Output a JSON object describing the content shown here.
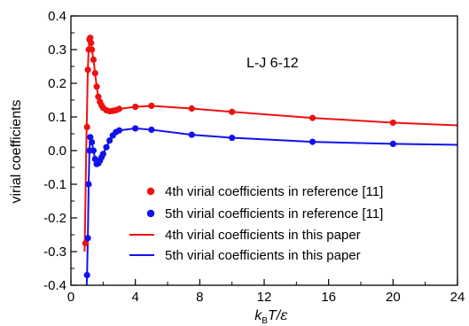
{
  "chart_data": {
    "type": "line",
    "title": "",
    "annotation": "L-J 6-12",
    "xlabel": {
      "k": "k",
      "sub": "B",
      "rest": "T/",
      "eps": "ε"
    },
    "ylabel": "virial coefficients",
    "xlim": [
      0,
      24
    ],
    "ylim": [
      -0.4,
      0.4
    ],
    "xticks": [
      0,
      4,
      8,
      12,
      16,
      20,
      24
    ],
    "yticks": [
      -0.4,
      -0.3,
      -0.2,
      -0.1,
      0.0,
      0.1,
      0.2,
      0.3,
      0.4
    ],
    "ytick_labels": [
      "-0.4",
      "-0.3",
      "-0.2",
      "-0.1",
      "0.0",
      "0.1",
      "0.2",
      "0.3",
      "0.4"
    ],
    "grid": false,
    "legend_position": "lower-center",
    "colors": {
      "red": "#ee1111",
      "blue": "#1111ee"
    },
    "series": [
      {
        "name": "4th virial coefficients in reference [11]",
        "kind": "scatter",
        "color": "#ee1111",
        "x": [
          0.9,
          1.0,
          1.05,
          1.1,
          1.15,
          1.2,
          1.25,
          1.3,
          1.4,
          1.5,
          1.6,
          1.7,
          1.8,
          1.9,
          2.0,
          2.2,
          2.4,
          2.6,
          2.8,
          3.0,
          4.0,
          5.0,
          7.5,
          10.0,
          15.0,
          20.0
        ],
        "y": [
          -0.275,
          0.07,
          0.24,
          0.3,
          0.33,
          0.335,
          0.32,
          0.3,
          0.27,
          0.23,
          0.19,
          0.16,
          0.145,
          0.135,
          0.127,
          0.12,
          0.117,
          0.118,
          0.12,
          0.124,
          0.13,
          0.133,
          0.125,
          0.115,
          0.097,
          0.083
        ]
      },
      {
        "name": "5th virial coefficients in reference [11]",
        "kind": "scatter",
        "color": "#1111ee",
        "x": [
          1.0,
          1.05,
          1.1,
          1.15,
          1.2,
          1.3,
          1.4,
          1.5,
          1.6,
          1.7,
          1.8,
          1.9,
          2.0,
          2.2,
          2.4,
          2.6,
          2.8,
          3.0,
          4.0,
          5.0,
          7.5,
          10.0,
          15.0,
          20.0
        ],
        "y": [
          -0.37,
          -0.26,
          -0.1,
          0.0,
          0.04,
          0.025,
          0.0,
          -0.025,
          -0.04,
          -0.038,
          -0.03,
          -0.02,
          -0.01,
          0.01,
          0.03,
          0.045,
          0.055,
          0.06,
          0.066,
          0.062,
          0.047,
          0.038,
          0.026,
          0.02
        ]
      },
      {
        "name": "4th virial coefficients in this paper",
        "kind": "line",
        "color": "#ee1111",
        "x": [
          0.85,
          0.95,
          1.05,
          1.1,
          1.15,
          1.2,
          1.25,
          1.3,
          1.4,
          1.5,
          1.6,
          1.7,
          1.8,
          1.9,
          2.0,
          2.2,
          2.4,
          2.6,
          2.8,
          3.0,
          4.0,
          5.0,
          7.5,
          10.0,
          15.0,
          20.0,
          24.0
        ],
        "y": [
          -0.3,
          0.0,
          0.24,
          0.3,
          0.33,
          0.335,
          0.32,
          0.3,
          0.27,
          0.23,
          0.19,
          0.16,
          0.145,
          0.135,
          0.127,
          0.12,
          0.117,
          0.118,
          0.12,
          0.124,
          0.13,
          0.133,
          0.125,
          0.115,
          0.097,
          0.083,
          0.075
        ]
      },
      {
        "name": "5th virial coefficients in this paper",
        "kind": "line",
        "color": "#1111ee",
        "x": [
          0.98,
          1.0,
          1.05,
          1.1,
          1.15,
          1.2,
          1.3,
          1.4,
          1.5,
          1.6,
          1.7,
          1.8,
          1.9,
          2.0,
          2.2,
          2.4,
          2.6,
          2.8,
          3.0,
          4.0,
          5.0,
          7.5,
          10.0,
          15.0,
          20.0,
          24.0
        ],
        "y": [
          -0.4,
          -0.37,
          -0.26,
          -0.1,
          0.0,
          0.04,
          0.025,
          0.0,
          -0.025,
          -0.04,
          -0.038,
          -0.03,
          -0.02,
          -0.01,
          0.01,
          0.03,
          0.045,
          0.055,
          0.06,
          0.066,
          0.062,
          0.047,
          0.038,
          0.026,
          0.02,
          0.017
        ]
      }
    ]
  }
}
